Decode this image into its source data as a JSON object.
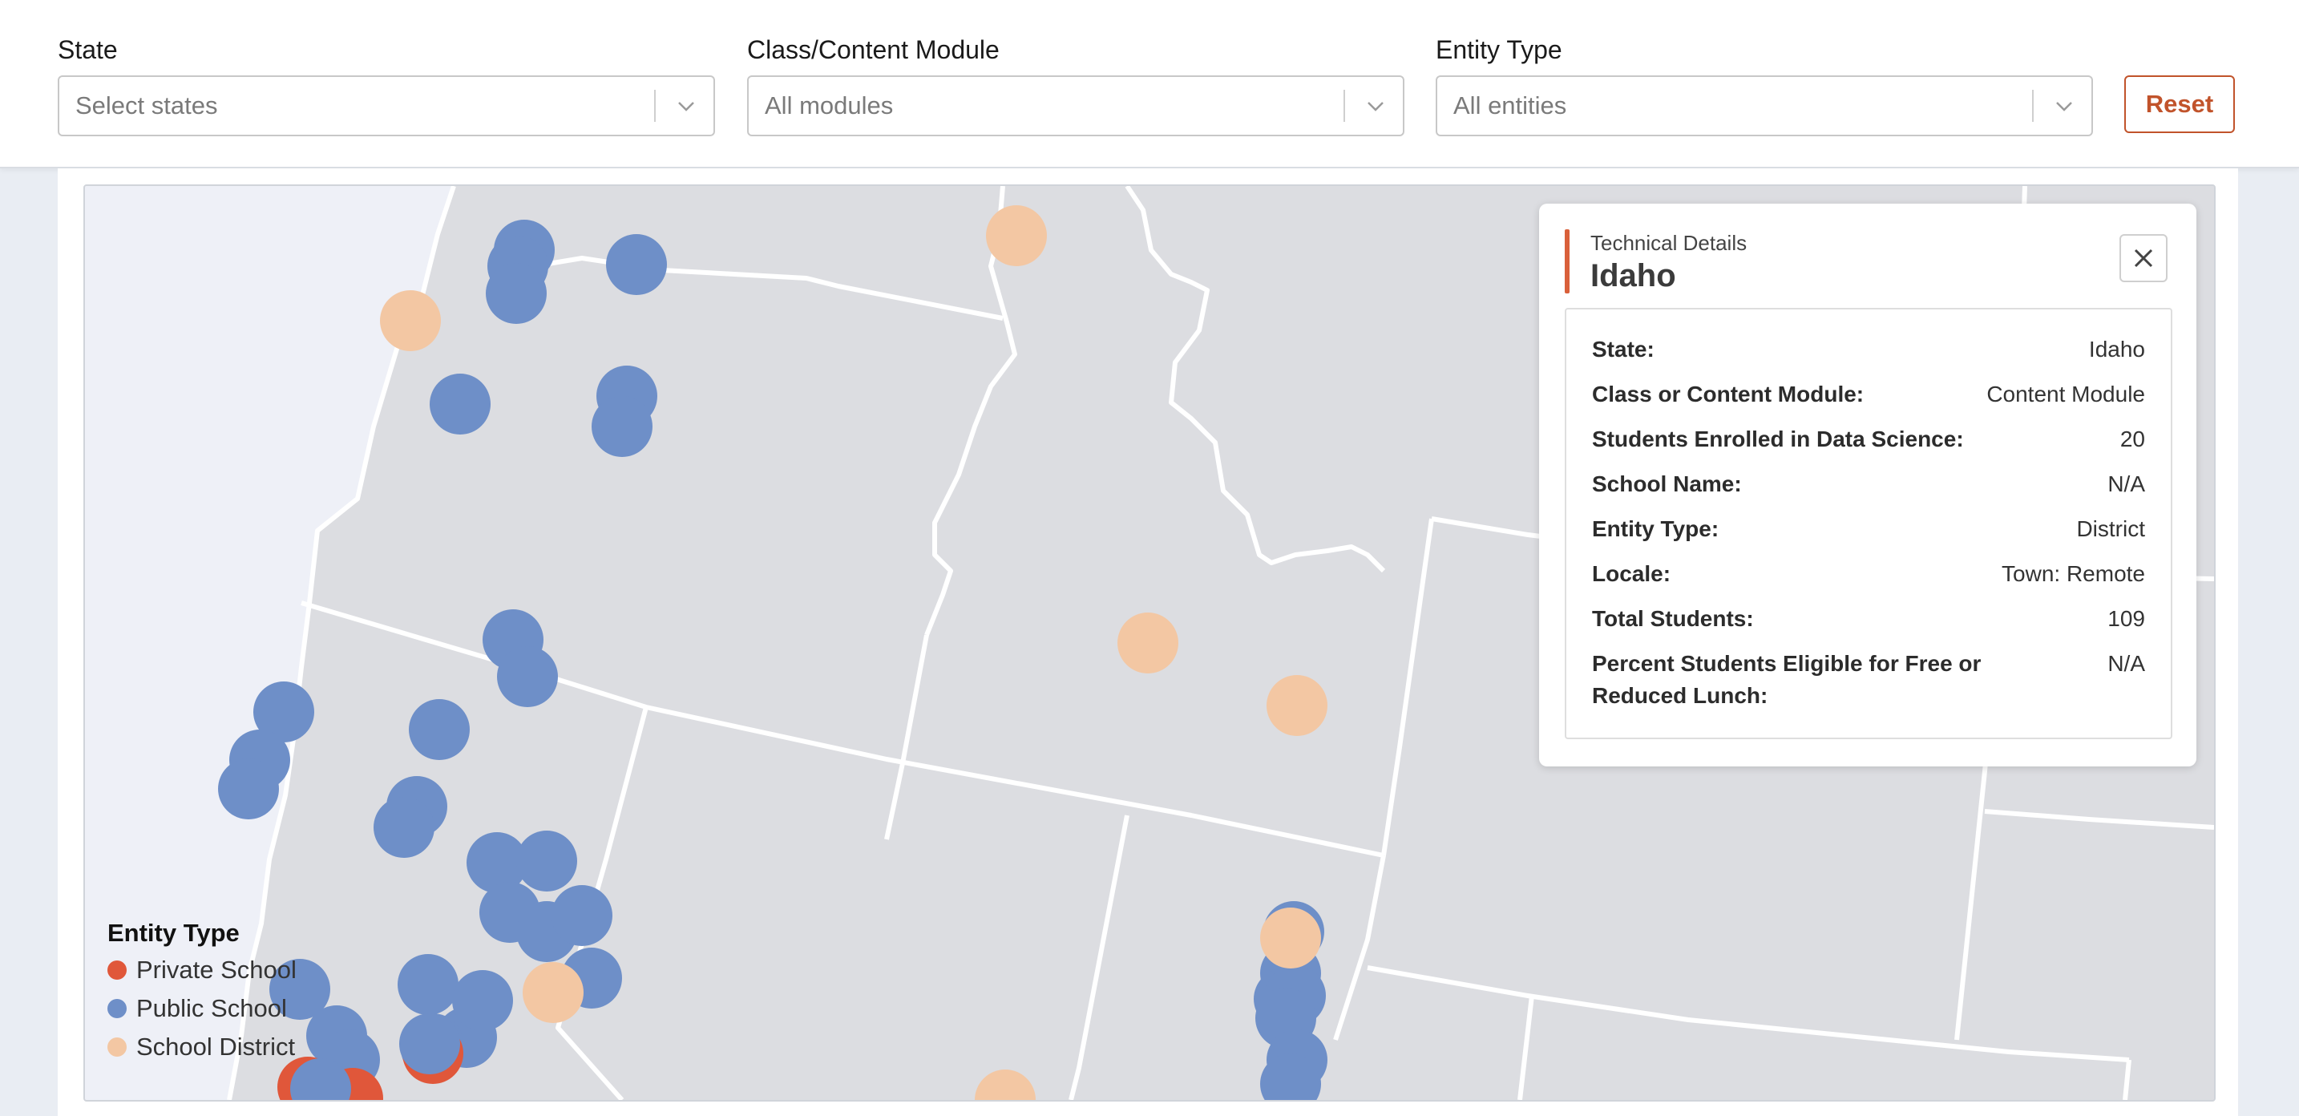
{
  "filters": {
    "state": {
      "label": "State",
      "placeholder": "Select states"
    },
    "module": {
      "label": "Class/Content Module",
      "placeholder": "All modules"
    },
    "entity": {
      "label": "Entity Type",
      "placeholder": "All entities"
    },
    "reset_label": "Reset"
  },
  "legend": {
    "title": "Entity Type",
    "items": [
      {
        "label": "Private School",
        "color": "#e0573a"
      },
      {
        "label": "Public School",
        "color": "#6e8fc8"
      },
      {
        "label": "School District",
        "color": "#f3c7a3"
      }
    ]
  },
  "details": {
    "subtitle": "Technical Details",
    "title": "Idaho",
    "rows": [
      {
        "key": "State:",
        "value": "Idaho"
      },
      {
        "key": "Class or Content Module:",
        "value": "Content Module"
      },
      {
        "key": "Students Enrolled in Data Science:",
        "value": "20"
      },
      {
        "key": "School Name:",
        "value": "N/A"
      },
      {
        "key": "Entity Type:",
        "value": "District"
      },
      {
        "key": "Locale:",
        "value": "Town: Remote"
      },
      {
        "key": "Total Students:",
        "value": "109"
      },
      {
        "key": "Percent Students Eligible for Free or Reduced Lunch:",
        "value": "N/A"
      }
    ]
  },
  "colors": {
    "accent": "#c1532b",
    "private": "#e0573a",
    "public": "#6e8fc8",
    "district": "#f3c7a3",
    "land": "#dcdde1",
    "water": "#eef0f7"
  }
}
